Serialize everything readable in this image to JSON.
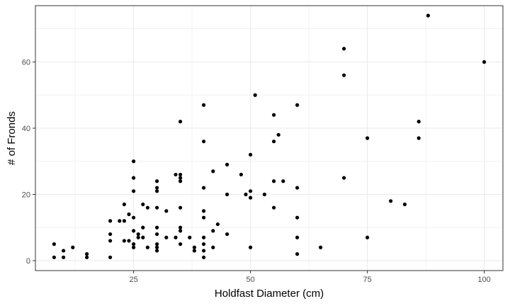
{
  "chart_data": {
    "type": "scatter",
    "title": "",
    "xlabel": "Holdfast Diameter (cm)",
    "ylabel": "# of Fronds",
    "xlim": [
      4,
      104
    ],
    "ylim": [
      -3,
      77
    ],
    "x_ticks": [
      25,
      50,
      75,
      100
    ],
    "y_ticks": [
      0,
      20,
      40,
      60
    ],
    "x_minor": [
      12.5,
      37.5,
      62.5,
      87.5
    ],
    "y_minor": [
      10,
      30,
      50,
      70
    ],
    "grid": true,
    "theme": "bw",
    "point_color": "#000000",
    "grid_color": "#ebebeb",
    "panel_border_color": "#333333",
    "points": [
      [
        8,
        5
      ],
      [
        8,
        1
      ],
      [
        10,
        3
      ],
      [
        10,
        1
      ],
      [
        12,
        4
      ],
      [
        15,
        2
      ],
      [
        15,
        1
      ],
      [
        20,
        12
      ],
      [
        20,
        8
      ],
      [
        20,
        6
      ],
      [
        20,
        1
      ],
      [
        22,
        12
      ],
      [
        23,
        17
      ],
      [
        23,
        12
      ],
      [
        23,
        6
      ],
      [
        24,
        14
      ],
      [
        24,
        6
      ],
      [
        25,
        30
      ],
      [
        25,
        25
      ],
      [
        25,
        21
      ],
      [
        25,
        13
      ],
      [
        25,
        9
      ],
      [
        25,
        5
      ],
      [
        25,
        4
      ],
      [
        26,
        8
      ],
      [
        26,
        7
      ],
      [
        27,
        17
      ],
      [
        27,
        10
      ],
      [
        27,
        7
      ],
      [
        28,
        16
      ],
      [
        28,
        4
      ],
      [
        30,
        24
      ],
      [
        30,
        22
      ],
      [
        30,
        21
      ],
      [
        30,
        16
      ],
      [
        30,
        10
      ],
      [
        30,
        8
      ],
      [
        30,
        5
      ],
      [
        30,
        4
      ],
      [
        30,
        3
      ],
      [
        32,
        15
      ],
      [
        32,
        7
      ],
      [
        34,
        26
      ],
      [
        34,
        7
      ],
      [
        35,
        42
      ],
      [
        35,
        26
      ],
      [
        35,
        25
      ],
      [
        35,
        24
      ],
      [
        35,
        16
      ],
      [
        35,
        10
      ],
      [
        35,
        9
      ],
      [
        35,
        5
      ],
      [
        37,
        7
      ],
      [
        38,
        4
      ],
      [
        38,
        3
      ],
      [
        40,
        47
      ],
      [
        40,
        36
      ],
      [
        40,
        22
      ],
      [
        40,
        15
      ],
      [
        40,
        13
      ],
      [
        40,
        7
      ],
      [
        40,
        5
      ],
      [
        40,
        3
      ],
      [
        40,
        1
      ],
      [
        42,
        27
      ],
      [
        42,
        9
      ],
      [
        42,
        4
      ],
      [
        43,
        11
      ],
      [
        45,
        29
      ],
      [
        45,
        20
      ],
      [
        45,
        8
      ],
      [
        48,
        26
      ],
      [
        49,
        20
      ],
      [
        50,
        32
      ],
      [
        50,
        21
      ],
      [
        50,
        19
      ],
      [
        50,
        4
      ],
      [
        51,
        50
      ],
      [
        53,
        20
      ],
      [
        55,
        44
      ],
      [
        55,
        36
      ],
      [
        55,
        24
      ],
      [
        55,
        16
      ],
      [
        56,
        38
      ],
      [
        57,
        24
      ],
      [
        60,
        47
      ],
      [
        60,
        22
      ],
      [
        60,
        13
      ],
      [
        60,
        7
      ],
      [
        60,
        2
      ],
      [
        65,
        4
      ],
      [
        70,
        64
      ],
      [
        70,
        56
      ],
      [
        70,
        25
      ],
      [
        75,
        37
      ],
      [
        75,
        7
      ],
      [
        80,
        18
      ],
      [
        83,
        17
      ],
      [
        86,
        42
      ],
      [
        86,
        37
      ],
      [
        88,
        74
      ],
      [
        100,
        60
      ]
    ]
  }
}
